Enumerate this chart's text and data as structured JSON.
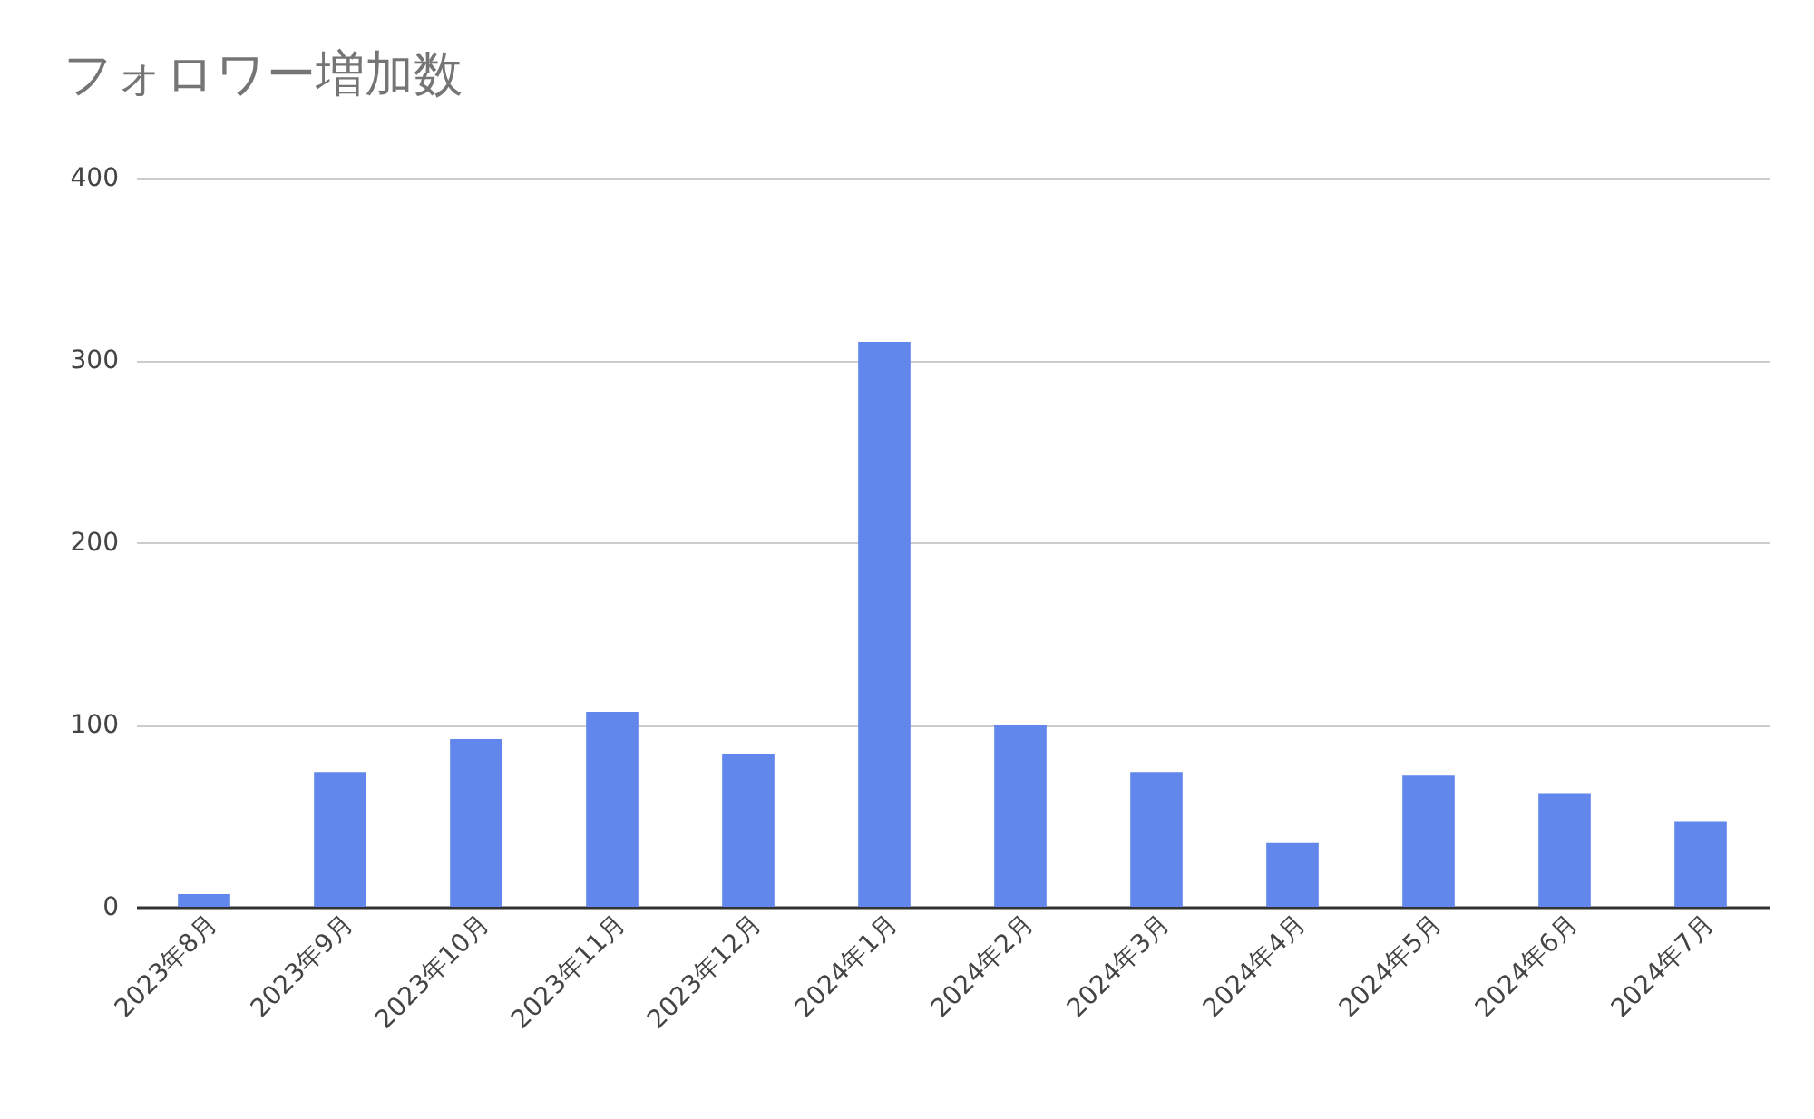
{
  "chart_data": {
    "type": "bar",
    "title": "フォロワー増加数",
    "categories": [
      "2023年8月",
      "2023年9月",
      "2023年10月",
      "2023年11月",
      "2023年12月",
      "2024年1月",
      "2024年2月",
      "2024年3月",
      "2024年4月",
      "2024年5月",
      "2024年6月",
      "2024年7月"
    ],
    "values": [
      7,
      74,
      92,
      107,
      84,
      310,
      100,
      74,
      35,
      72,
      62,
      47
    ],
    "color": "#6186ec",
    "ylim": [
      0,
      400
    ],
    "yticks": [
      0,
      100,
      200,
      300,
      400
    ],
    "grid": "y"
  }
}
